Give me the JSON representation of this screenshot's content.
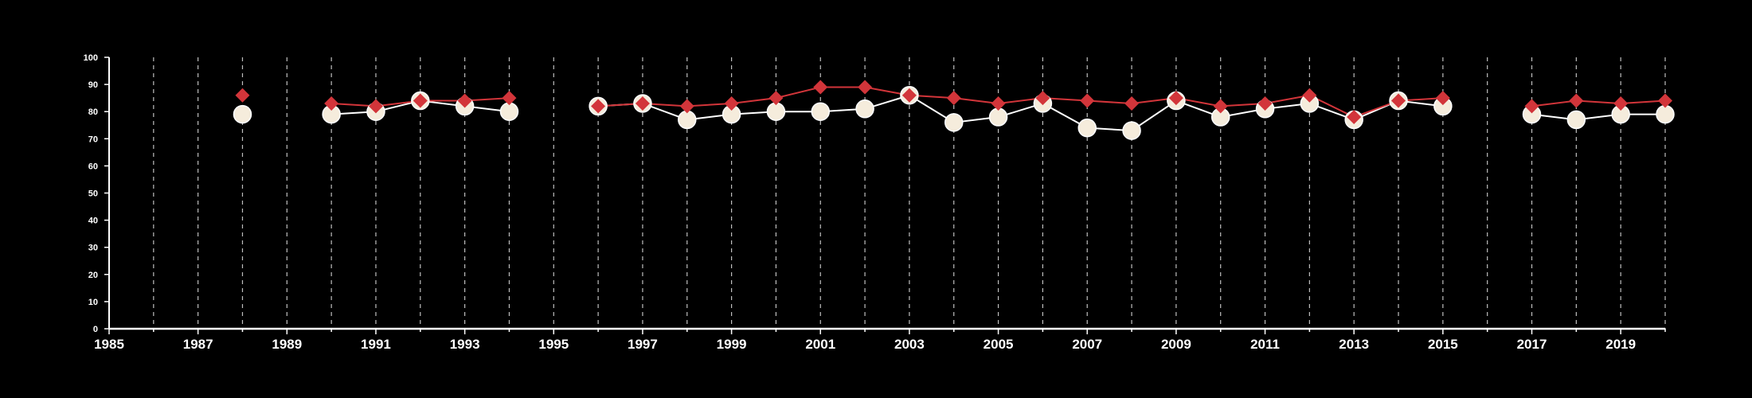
{
  "chart_data": {
    "type": "line",
    "title": "",
    "xlabel": "",
    "ylabel": "",
    "xlim": [
      1985,
      2020
    ],
    "ylim": [
      0,
      100
    ],
    "x_ticks": [
      1985,
      1987,
      1989,
      1991,
      1993,
      1995,
      1997,
      1999,
      2001,
      2003,
      2005,
      2007,
      2009,
      2011,
      2013,
      2015,
      2017,
      2019
    ],
    "x_tick_labels": [
      "1985",
      "1987",
      "1989",
      "1991",
      "1993",
      "1995",
      "1997",
      "1999",
      "2001",
      "2003",
      "2005",
      "2007",
      "2009",
      "2011",
      "2013",
      "2015",
      "2017",
      "2019"
    ],
    "y_ticks": [
      0,
      10,
      20,
      30,
      40,
      50,
      60,
      70,
      80,
      90,
      100
    ],
    "y_tick_labels": [
      "0",
      "10",
      "20",
      "30",
      "40",
      "50",
      "60",
      "70",
      "80",
      "90",
      "100"
    ],
    "vertical_gridlines_every_year": true,
    "grid_style": "dashed",
    "legend": "none",
    "colors": {
      "background": "#000000",
      "axis": "#ffffff",
      "grid": "#bfbfbf",
      "series_circle_fill": "#f5ecdc",
      "series_circle_line": "#ffffff",
      "series_diamond": "#d2353a"
    },
    "series": [
      {
        "marker": "diamond",
        "color": "#d2353a",
        "x": [
          1988,
          1990,
          1991,
          1992,
          1993,
          1994,
          1996,
          1997,
          1998,
          1999,
          2000,
          2001,
          2002,
          2003,
          2004,
          2005,
          2006,
          2007,
          2008,
          2009,
          2010,
          2011,
          2012,
          2013,
          2014,
          2015,
          2017,
          2018,
          2019,
          2020
        ],
        "values": [
          86,
          83,
          82,
          84,
          84,
          85,
          82,
          83,
          82,
          83,
          85,
          89,
          89,
          86,
          85,
          83,
          85,
          84,
          83,
          85,
          82,
          83,
          86,
          78,
          84,
          85,
          82,
          84,
          83,
          84
        ]
      },
      {
        "marker": "circle",
        "color": "#f5ecdc",
        "x": [
          1988,
          1990,
          1991,
          1992,
          1993,
          1994,
          1996,
          1997,
          1998,
          1999,
          2000,
          2001,
          2002,
          2003,
          2004,
          2005,
          2006,
          2007,
          2008,
          2009,
          2010,
          2011,
          2012,
          2013,
          2014,
          2015,
          2017,
          2018,
          2019,
          2020
        ],
        "values": [
          79,
          79,
          80,
          84,
          82,
          80,
          82,
          83,
          77,
          79,
          80,
          80,
          81,
          86,
          76,
          78,
          83,
          74,
          73,
          84,
          78,
          81,
          83,
          77,
          84,
          82,
          79,
          77,
          79,
          79
        ]
      }
    ]
  }
}
